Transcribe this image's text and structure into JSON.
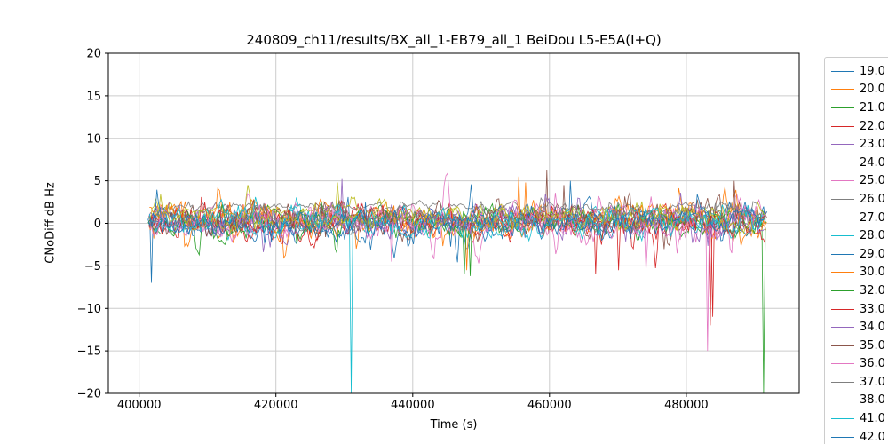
{
  "chart_data": {
    "type": "line",
    "title": "240809_ch11/results/BX_all_1-EB79_all_1 BeiDou L5-E5A(I+Q)",
    "xlabel": "Time (s)",
    "ylabel": "CNoDiff dB Hz",
    "xlim": [
      395500,
      496500
    ],
    "ylim": [
      -20,
      20
    ],
    "xticks": [
      400000,
      420000,
      440000,
      460000,
      480000
    ],
    "yticks": [
      -20,
      -15,
      -10,
      -5,
      0,
      5,
      10,
      15,
      20
    ],
    "grid": true,
    "grid_color": "#cccccc",
    "spine_color": "#000000",
    "legend_position": "right-outside",
    "step": 250,
    "series": [
      {
        "label": "19.0",
        "color": "#1f77b4",
        "seed": 11,
        "x_start": 401300,
        "x_end": 491800,
        "offset": 0.2,
        "amp": 1.0,
        "spikes": [
          [
            401900,
            -7
          ]
        ]
      },
      {
        "label": "20.0",
        "color": "#ff7f0e",
        "seed": 23,
        "x_start": 401400,
        "x_end": 491800,
        "offset": 0.3,
        "amp": 1.1,
        "spikes": [
          [
            447800,
            -5.5
          ]
        ]
      },
      {
        "label": "21.0",
        "color": "#2ca02c",
        "seed": 37,
        "x_start": 401300,
        "x_end": 491600,
        "offset": 0.1,
        "amp": 1.0,
        "spikes": [
          [
            447500,
            -6
          ],
          [
            491300,
            -20
          ]
        ]
      },
      {
        "label": "22.0",
        "color": "#d62728",
        "seed": 41,
        "x_start": 401500,
        "x_end": 491700,
        "offset": 0.0,
        "amp": 1.1,
        "spikes": [
          [
            466800,
            -6
          ],
          [
            483600,
            -12
          ]
        ]
      },
      {
        "label": "23.0",
        "color": "#9467bd",
        "seed": 53,
        "x_start": 401400,
        "x_end": 491500,
        "offset": 0.4,
        "amp": 1.0,
        "spikes": [
          [
            429600,
            5.2
          ]
        ]
      },
      {
        "label": "24.0",
        "color": "#8c564b",
        "seed": 67,
        "x_start": 401600,
        "x_end": 491800,
        "offset": 0.5,
        "amp": 1.0,
        "spikes": [
          [
            459600,
            6.3
          ],
          [
            462000,
            4.5
          ]
        ]
      },
      {
        "label": "25.0",
        "color": "#e377c2",
        "seed": 71,
        "x_start": 401400,
        "x_end": 491600,
        "offset": 0.2,
        "amp": 1.1,
        "spikes": [
          [
            437000,
            -4.5
          ]
        ]
      },
      {
        "label": "26.0",
        "color": "#7f7f7f",
        "seed": 83,
        "x_start": 403000,
        "x_end": 489000,
        "offset": 1.9,
        "amp": 0.35,
        "spikes": []
      },
      {
        "label": "27.0",
        "color": "#bcbd22",
        "seed": 97,
        "x_start": 402000,
        "x_end": 490000,
        "offset": 1.3,
        "amp": 0.6,
        "spikes": [
          [
            429000,
            4.8
          ]
        ]
      },
      {
        "label": "28.0",
        "color": "#17becf",
        "seed": 109,
        "x_start": 401500,
        "x_end": 491500,
        "offset": 0.1,
        "amp": 1.0,
        "spikes": [
          [
            431000,
            -20
          ]
        ]
      },
      {
        "label": "29.0",
        "color": "#1f77b4",
        "seed": 113,
        "x_start": 401300,
        "x_end": 491700,
        "offset": 0.2,
        "amp": 1.1,
        "spikes": [
          [
            463000,
            5.0
          ]
        ]
      },
      {
        "label": "30.0",
        "color": "#ff7f0e",
        "seed": 127,
        "x_start": 401500,
        "x_end": 491800,
        "offset": 0.3,
        "amp": 1.2,
        "spikes": [
          [
            455600,
            5.5
          ],
          [
            456400,
            4.8
          ]
        ]
      },
      {
        "label": "32.0",
        "color": "#2ca02c",
        "seed": 131,
        "x_start": 401400,
        "x_end": 491700,
        "offset": 0.1,
        "amp": 1.0,
        "spikes": [
          [
            448300,
            -6.2
          ]
        ]
      },
      {
        "label": "33.0",
        "color": "#d62728",
        "seed": 139,
        "x_start": 401600,
        "x_end": 491800,
        "offset": 0.0,
        "amp": 1.2,
        "spikes": [
          [
            470000,
            -5.5
          ],
          [
            483900,
            -11
          ]
        ]
      },
      {
        "label": "34.0",
        "color": "#9467bd",
        "seed": 149,
        "x_start": 401400,
        "x_end": 491600,
        "offset": 0.3,
        "amp": 1.0,
        "spikes": []
      },
      {
        "label": "35.0",
        "color": "#8c564b",
        "seed": 151,
        "x_start": 401500,
        "x_end": 491800,
        "offset": 0.4,
        "amp": 1.0,
        "spikes": [
          [
            487000,
            5.0
          ]
        ]
      },
      {
        "label": "36.0",
        "color": "#e377c2",
        "seed": 163,
        "x_start": 401600,
        "x_end": 491700,
        "offset": 0.0,
        "amp": 1.2,
        "spikes": [
          [
            474000,
            -5.5
          ],
          [
            483100,
            -15
          ]
        ]
      },
      {
        "label": "37.0",
        "color": "#7f7f7f",
        "seed": 167,
        "x_start": 401500,
        "x_end": 491600,
        "offset": 0.5,
        "amp": 0.9,
        "spikes": []
      },
      {
        "label": "38.0",
        "color": "#bcbd22",
        "seed": 173,
        "x_start": 401400,
        "x_end": 491500,
        "offset": 0.6,
        "amp": 0.9,
        "spikes": []
      },
      {
        "label": "41.0",
        "color": "#17becf",
        "seed": 179,
        "x_start": 401500,
        "x_end": 491400,
        "offset": 0.2,
        "amp": 1.0,
        "spikes": []
      },
      {
        "label": "42.0",
        "color": "#1f77b4",
        "seed": 181,
        "x_start": 401600,
        "x_end": 491500,
        "offset": 0.1,
        "amp": 1.0,
        "spikes": []
      }
    ]
  }
}
